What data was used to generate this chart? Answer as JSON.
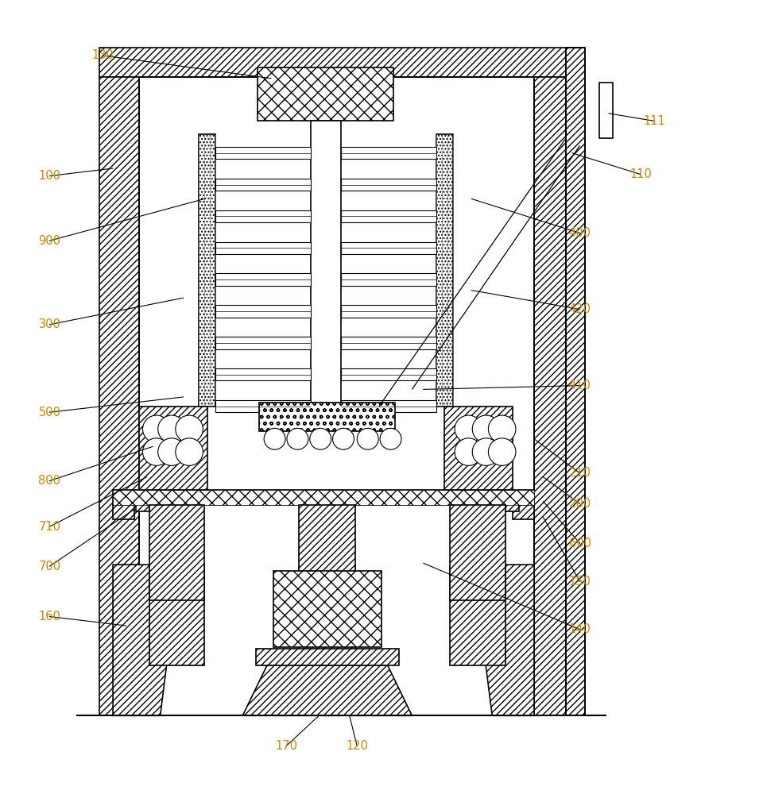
{
  "bg": "#ffffff",
  "lc": "#000000",
  "label_color": "#cc8800",
  "lw": 1.2,
  "fig_w": 9.6,
  "fig_h": 10.0,
  "annots": {
    "130": {
      "ls": [
        0.355,
        0.918
      ],
      "lp": [
        0.135,
        0.948
      ]
    },
    "100": {
      "ls": [
        0.148,
        0.8
      ],
      "lp": [
        0.065,
        0.79
      ]
    },
    "900": {
      "ls": [
        0.268,
        0.76
      ],
      "lp": [
        0.065,
        0.705
      ]
    },
    "300": {
      "ls": [
        0.24,
        0.63
      ],
      "lp": [
        0.065,
        0.595
      ]
    },
    "500": {
      "ls": [
        0.24,
        0.5
      ],
      "lp": [
        0.065,
        0.48
      ]
    },
    "800": {
      "ls": [
        0.2,
        0.435
      ],
      "lp": [
        0.065,
        0.39
      ]
    },
    "710": {
      "ls": [
        0.192,
        0.395
      ],
      "lp": [
        0.065,
        0.33
      ]
    },
    "700": {
      "ls": [
        0.175,
        0.352
      ],
      "lp": [
        0.065,
        0.278
      ]
    },
    "160": {
      "ls": [
        0.165,
        0.2
      ],
      "lp": [
        0.065,
        0.212
      ]
    },
    "400": {
      "ls": [
        0.618,
        0.76
      ],
      "lp": [
        0.76,
        0.715
      ]
    },
    "420": {
      "ls": [
        0.618,
        0.64
      ],
      "lp": [
        0.76,
        0.615
      ]
    },
    "410": {
      "ls": [
        0.555,
        0.51
      ],
      "lp": [
        0.76,
        0.515
      ]
    },
    "210": {
      "ls": [
        0.7,
        0.445
      ],
      "lp": [
        0.76,
        0.4
      ]
    },
    "200": {
      "ls": [
        0.712,
        0.395
      ],
      "lp": [
        0.76,
        0.36
      ]
    },
    "600": {
      "ls": [
        0.712,
        0.363
      ],
      "lp": [
        0.76,
        0.308
      ]
    },
    "150": {
      "ls": [
        0.712,
        0.342
      ],
      "lp": [
        0.76,
        0.258
      ]
    },
    "140": {
      "ls": [
        0.555,
        0.282
      ],
      "lp": [
        0.76,
        0.195
      ]
    },
    "110": {
      "ls": [
        0.75,
        0.82
      ],
      "lp": [
        0.84,
        0.792
      ]
    },
    "111": {
      "ls": [
        0.798,
        0.872
      ],
      "lp": [
        0.858,
        0.862
      ]
    },
    "170": {
      "ls": [
        0.418,
        0.082
      ],
      "lp": [
        0.375,
        0.042
      ]
    },
    "120": {
      "ls": [
        0.458,
        0.082
      ],
      "lp": [
        0.468,
        0.042
      ]
    }
  }
}
